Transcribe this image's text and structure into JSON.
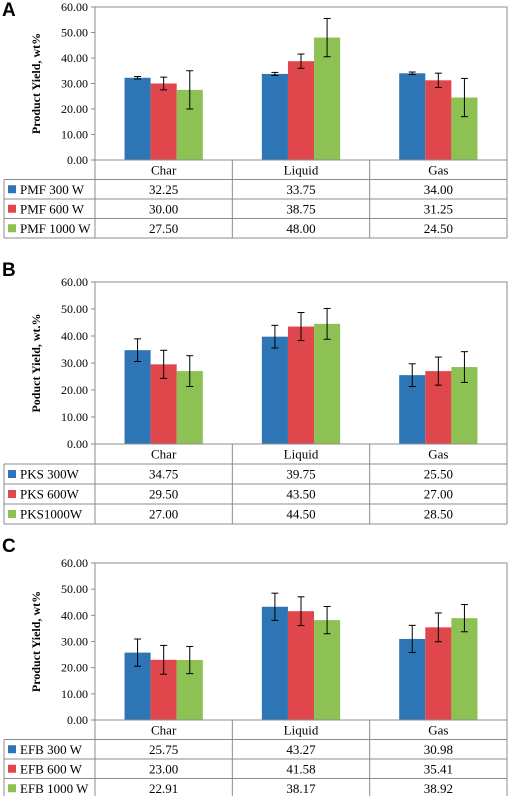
{
  "chart_data": [
    {
      "type": "bar",
      "panel_label": "A",
      "ylabel": "Product Yield, wt%",
      "ylim": [
        0,
        60
      ],
      "yticks": [
        "0.00",
        "10.00",
        "20.00",
        "30.00",
        "40.00",
        "50.00",
        "60.00"
      ],
      "categories": [
        "Char",
        "Liquid",
        "Gas"
      ],
      "legend_placement": "data-table",
      "series": [
        {
          "name": "PMF 300 W",
          "color": "#2E75B6",
          "values": [
            32.25,
            33.75,
            34.0
          ],
          "errors": [
            0.5,
            0.6,
            0.5
          ],
          "labels": [
            "32.25",
            "33.75",
            "34.00"
          ]
        },
        {
          "name": "PMF  600 W",
          "color": "#E0474C",
          "values": [
            30.0,
            38.75,
            31.25
          ],
          "errors": [
            2.5,
            2.8,
            2.8
          ],
          "labels": [
            "30.00",
            "38.75",
            "31.25"
          ]
        },
        {
          "name": "PMF 1000 W",
          "color": "#8DC153",
          "values": [
            27.5,
            48.0,
            24.5
          ],
          "errors": [
            7.5,
            7.5,
            7.5
          ],
          "labels": [
            "27.50",
            "48.00",
            "24.50"
          ]
        }
      ]
    },
    {
      "type": "bar",
      "panel_label": "B",
      "ylabel": "Poduct Yield, wt.%",
      "ylim": [
        0,
        60
      ],
      "yticks": [
        "0.00",
        "10.00",
        "20.00",
        "30.00",
        "40.00",
        "50.00",
        "60.00"
      ],
      "categories": [
        "Char",
        "Liquid",
        "Gas"
      ],
      "legend_placement": "data-table",
      "series": [
        {
          "name": "PKS 300W",
          "color": "#2E75B6",
          "values": [
            34.75,
            39.75,
            25.5
          ],
          "errors": [
            4.2,
            4.2,
            4.2
          ],
          "labels": [
            "34.75",
            "39.75",
            "25.50"
          ]
        },
        {
          "name": "PKS 600W",
          "color": "#E0474C",
          "values": [
            29.5,
            43.5,
            27.0
          ],
          "errors": [
            5.2,
            5.2,
            5.2
          ],
          "labels": [
            "29.50",
            "43.50",
            "27.00"
          ]
        },
        {
          "name": "PKS1000W",
          "color": "#8DC153",
          "values": [
            27.0,
            44.5,
            28.5
          ],
          "errors": [
            5.7,
            5.7,
            5.7
          ],
          "labels": [
            "27.00",
            "44.50",
            "28.50"
          ]
        }
      ]
    },
    {
      "type": "bar",
      "panel_label": "C",
      "ylabel": "Product Yield, wt%",
      "ylim": [
        0,
        60
      ],
      "yticks": [
        "0.00",
        "10.00",
        "20.00",
        "30.00",
        "40.00",
        "50.00",
        "60.00"
      ],
      "categories": [
        "Char",
        "Liquid",
        "Gas"
      ],
      "legend_placement": "data-table",
      "series": [
        {
          "name": "EFB 300 W",
          "color": "#2E75B6",
          "values": [
            25.75,
            43.27,
            30.98
          ],
          "errors": [
            5.2,
            5.2,
            5.2
          ],
          "labels": [
            "25.75",
            "43.27",
            "30.98"
          ]
        },
        {
          "name": "EFB 600 W",
          "color": "#E0474C",
          "values": [
            23.0,
            41.58,
            35.41
          ],
          "errors": [
            5.5,
            5.5,
            5.5
          ],
          "labels": [
            "23.00",
            "41.58",
            "35.41"
          ]
        },
        {
          "name": "EFB 1000 W",
          "color": "#8DC153",
          "values": [
            22.91,
            38.17,
            38.92
          ],
          "errors": [
            5.2,
            5.2,
            5.2
          ],
          "labels": [
            "22.91",
            "38.17",
            "38.92"
          ]
        }
      ]
    }
  ]
}
